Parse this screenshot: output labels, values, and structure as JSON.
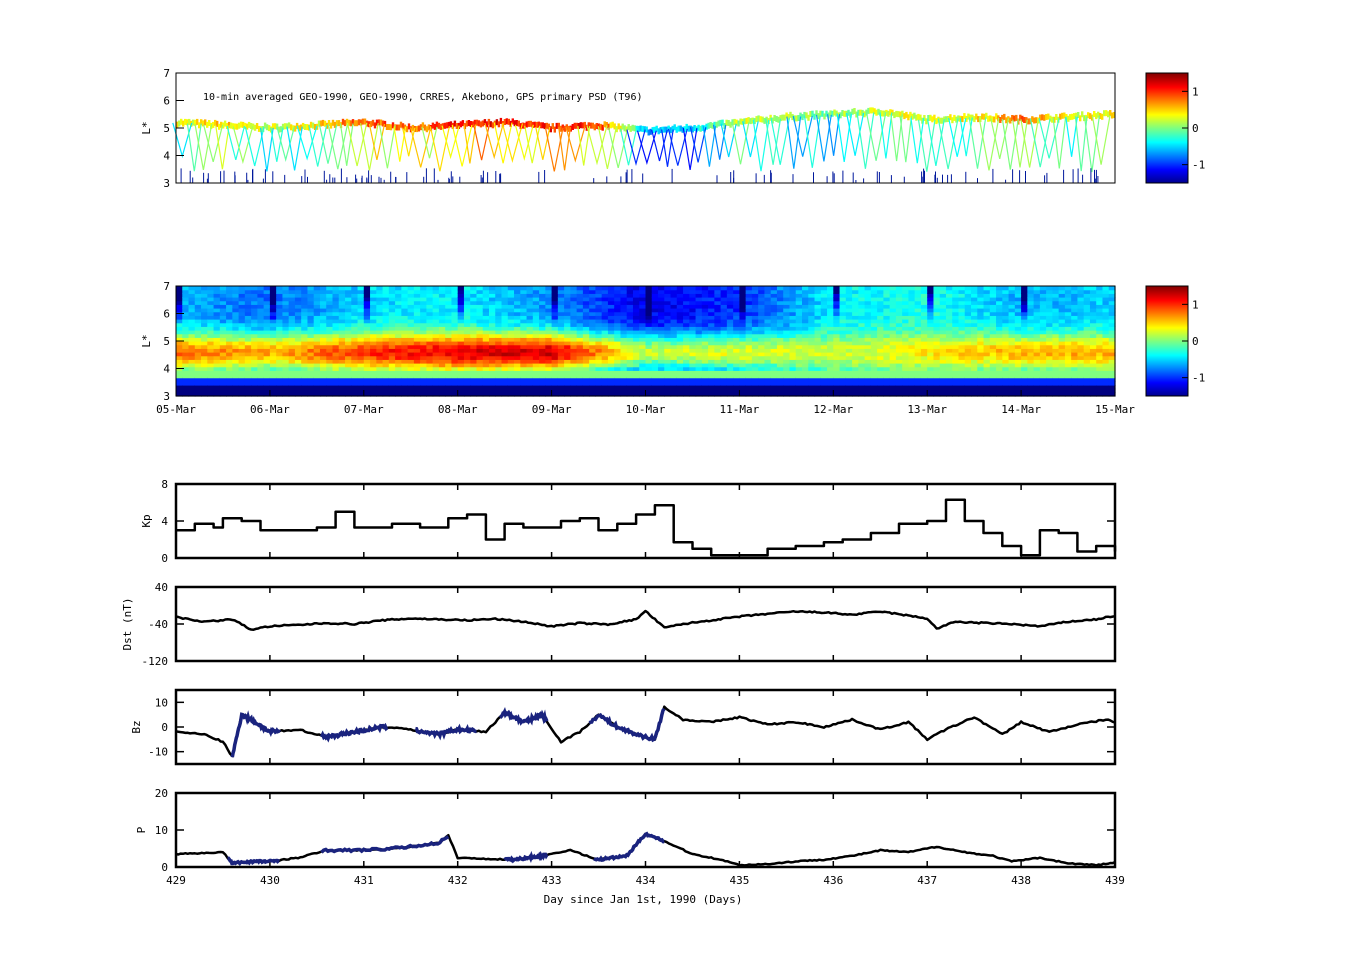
{
  "figure": {
    "psd_title": "10-min averaged GEO-1990, GEO-1990, CRRES, Akebono, GPS  primary PSD (T96)",
    "date_ticks": [
      "05-Mar",
      "06-Mar",
      "07-Mar",
      "08-Mar",
      "09-Mar",
      "10-Mar",
      "11-Mar",
      "12-Mar",
      "13-Mar",
      "14-Mar",
      "15-Mar"
    ],
    "day_ticks": [
      "429",
      "430",
      "431",
      "432",
      "433",
      "434",
      "435",
      "436",
      "437",
      "438",
      "439"
    ],
    "xlabel": "Day since Jan 1st, 1990 (Days)",
    "colorbar_ticks": [
      "1",
      "0",
      "-1"
    ],
    "colors": {
      "line": "#000000",
      "overlay": "#1a237e",
      "axis": "#000000"
    }
  },
  "chart_data": [
    {
      "type": "scatter",
      "id": "psd-obs",
      "title": "10-min averaged GEO-1990, GEO-1990, CRRES, Akebono, GPS  primary PSD (T96)",
      "ylabel": "L*",
      "ylim": [
        3,
        7
      ],
      "xlim": [
        429,
        439
      ],
      "yticks": [
        "3",
        "4",
        "5",
        "6",
        "7"
      ],
      "colormap": "jet",
      "clim": [
        -1.5,
        1.5
      ],
      "colorbar_ticks": [
        1,
        0,
        -1
      ],
      "series": [
        {
          "x": [
            429.0,
            429.5,
            430.0,
            430.5,
            431.0,
            431.5,
            432.0,
            432.5,
            433.0,
            433.5,
            434.0,
            434.5,
            435.0,
            435.5,
            436.0,
            436.5,
            437.0,
            437.5,
            438.0,
            438.5,
            439.0
          ],
          "y": [
            5.2,
            5.1,
            5.0,
            5.1,
            5.2,
            5.0,
            5.1,
            5.2,
            5.0,
            5.1,
            4.9,
            5.0,
            5.2,
            5.4,
            5.5,
            5.6,
            5.3,
            5.4,
            5.3,
            5.4,
            5.5
          ],
          "value": [
            0.3,
            0.5,
            0.2,
            0.4,
            0.9,
            0.8,
            1.0,
            1.1,
            1.0,
            1.0,
            -0.6,
            -0.4,
            0.2,
            0.1,
            0.0,
            0.3,
            0.2,
            0.4,
            0.8,
            0.3,
            0.5
          ]
        }
      ]
    },
    {
      "type": "heatmap",
      "id": "psd-model",
      "ylabel": "L*",
      "ylim": [
        3,
        7
      ],
      "xlim": [
        429,
        439
      ],
      "yticks": [
        "3",
        "4",
        "5",
        "6",
        "7"
      ],
      "xticklabels": [
        "05-Mar",
        "06-Mar",
        "07-Mar",
        "08-Mar",
        "09-Mar",
        "10-Mar",
        "11-Mar",
        "12-Mar",
        "13-Mar",
        "14-Mar",
        "15-Mar"
      ],
      "colormap": "jet",
      "clim": [
        -1.5,
        1.5
      ],
      "colorbar_ticks": [
        1,
        0,
        -1
      ],
      "day_profile_peak": [
        0.8,
        0.6,
        1.0,
        1.2,
        1.3,
        0.2,
        0.3,
        0.2,
        0.4,
        0.6,
        0.6
      ],
      "day_profile_outer": [
        -0.6,
        -0.8,
        -0.5,
        -0.4,
        -0.7,
        -1.2,
        -1.0,
        -0.4,
        -0.3,
        -0.6,
        -0.5
      ]
    },
    {
      "type": "line",
      "id": "kp",
      "ylabel": "Kp",
      "ylim": [
        0,
        8
      ],
      "yticks": [
        "0",
        "4",
        "8"
      ],
      "x": [
        429.0,
        429.2,
        429.4,
        429.5,
        429.7,
        429.9,
        430.2,
        430.5,
        430.7,
        430.9,
        431.1,
        431.3,
        431.6,
        431.9,
        432.1,
        432.3,
        432.5,
        432.7,
        432.9,
        433.1,
        433.3,
        433.5,
        433.7,
        433.9,
        434.1,
        434.3,
        434.5,
        434.7,
        434.9,
        435.1,
        435.3,
        435.6,
        435.9,
        436.1,
        436.4,
        436.7,
        437.0,
        437.2,
        437.4,
        437.6,
        437.8,
        438.0,
        438.2,
        438.4,
        438.6,
        438.8,
        439.0
      ],
      "series": [
        {
          "name": "",
          "values": [
            3.0,
            3.7,
            3.3,
            4.3,
            4.0,
            3.0,
            3.0,
            3.3,
            5.0,
            3.3,
            3.3,
            3.7,
            3.3,
            4.3,
            4.7,
            2.0,
            3.7,
            3.3,
            3.3,
            4.0,
            4.3,
            3.0,
            3.7,
            4.7,
            5.7,
            1.7,
            1.0,
            0.3,
            0.3,
            0.3,
            1.0,
            1.3,
            1.7,
            2.0,
            2.7,
            3.7,
            4.0,
            6.3,
            4.0,
            2.7,
            1.3,
            0.3,
            3.0,
            2.7,
            0.7,
            1.3,
            0.7
          ]
        }
      ]
    },
    {
      "type": "line",
      "id": "dst",
      "ylabel": "Dst (nT)",
      "ylim": [
        -120,
        40
      ],
      "yticks": [
        "-120",
        "-40",
        "40"
      ],
      "x": [
        429.0,
        429.3,
        429.6,
        429.8,
        430.0,
        430.3,
        430.6,
        430.9,
        431.2,
        431.5,
        431.8,
        432.1,
        432.4,
        432.7,
        433.0,
        433.3,
        433.6,
        433.9,
        434.0,
        434.2,
        434.4,
        434.7,
        435.0,
        435.3,
        435.6,
        435.9,
        436.2,
        436.5,
        436.8,
        437.0,
        437.1,
        437.3,
        437.6,
        437.9,
        438.2,
        438.5,
        438.8,
        439.0
      ],
      "series": [
        {
          "name": "",
          "values": [
            -25,
            -35,
            -30,
            -52,
            -45,
            -42,
            -38,
            -40,
            -32,
            -28,
            -30,
            -32,
            -29,
            -35,
            -45,
            -38,
            -41,
            -30,
            -12,
            -48,
            -40,
            -32,
            -24,
            -18,
            -13,
            -15,
            -20,
            -13,
            -22,
            -28,
            -50,
            -35,
            -38,
            -40,
            -45,
            -35,
            -30,
            -22
          ]
        }
      ]
    },
    {
      "type": "line",
      "id": "bz",
      "ylabel": "Bz",
      "ylim": [
        -15,
        15
      ],
      "yticks": [
        "-10",
        "0",
        "10"
      ],
      "x": [
        429.0,
        429.3,
        429.5,
        429.6,
        429.7,
        429.8,
        430.0,
        430.3,
        430.6,
        430.9,
        431.2,
        431.5,
        431.8,
        432.0,
        432.3,
        432.5,
        432.7,
        432.9,
        433.1,
        433.3,
        433.5,
        433.7,
        433.9,
        434.1,
        434.2,
        434.4,
        434.7,
        435.0,
        435.3,
        435.6,
        435.9,
        436.2,
        436.5,
        436.8,
        437.0,
        437.2,
        437.5,
        437.8,
        438.0,
        438.3,
        438.6,
        438.9,
        439.0
      ],
      "series": [
        {
          "name": "",
          "values": [
            -2,
            -3,
            -6,
            -12,
            5,
            3,
            -2,
            -1,
            -4,
            -2,
            0,
            -1,
            -3,
            -1,
            -2,
            6,
            2,
            5,
            -6,
            -2,
            5,
            0,
            -3,
            -5,
            8,
            3,
            2,
            4,
            1,
            2,
            0,
            3,
            -1,
            2,
            -5,
            -1,
            4,
            -3,
            2,
            -2,
            1,
            3,
            2
          ]
        },
        {
          "name": "",
          "x0": [
            429.6,
            430.1,
            430.6,
            431.2,
            431.6,
            432.4,
            432.6,
            433.3,
            434.2
          ],
          "values_overlay": true
        }
      ]
    },
    {
      "type": "line",
      "id": "pressure",
      "ylabel": "P",
      "xlabel": "Day since Jan 1st, 1990 (Days)",
      "ylim": [
        0,
        20
      ],
      "yticks": [
        "0",
        "10",
        "20"
      ],
      "xticklabels": [
        "429",
        "430",
        "431",
        "432",
        "433",
        "434",
        "435",
        "436",
        "437",
        "438",
        "439"
      ],
      "x": [
        429.0,
        429.3,
        429.5,
        429.6,
        429.8,
        430.0,
        430.3,
        430.6,
        430.9,
        431.2,
        431.5,
        431.8,
        431.9,
        432.0,
        432.3,
        432.6,
        432.9,
        433.2,
        433.5,
        433.8,
        434.0,
        434.2,
        434.5,
        434.8,
        435.0,
        435.3,
        435.6,
        435.9,
        436.2,
        436.5,
        436.8,
        437.1,
        437.4,
        437.7,
        437.9,
        438.2,
        438.5,
        438.8,
        439.0
      ],
      "series": [
        {
          "name": "",
          "values": [
            3.5,
            3.8,
            4.0,
            1.0,
            1.5,
            1.5,
            2.5,
            4.5,
            4.5,
            4.8,
            5.5,
            6.5,
            8.5,
            2.5,
            2.2,
            2.0,
            3.0,
            4.5,
            2.0,
            3.0,
            9.0,
            7.0,
            3.5,
            2.0,
            0.5,
            0.8,
            1.5,
            2.0,
            3.0,
            4.5,
            4.0,
            5.5,
            4.0,
            3.0,
            1.5,
            2.5,
            1.0,
            0.5,
            1.2
          ]
        }
      ]
    }
  ]
}
